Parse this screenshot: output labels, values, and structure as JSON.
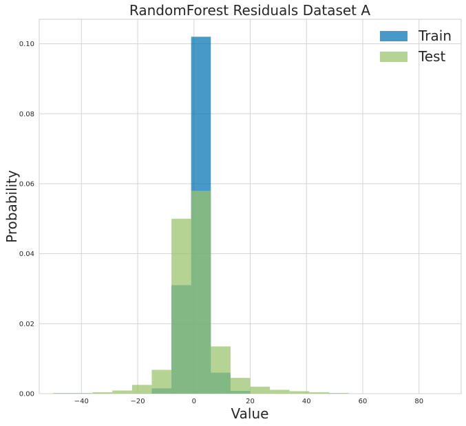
{
  "chart_data": {
    "type": "bar",
    "title": "RandomForest Residuals Dataset A",
    "xlabel": "Value",
    "ylabel": "Probability",
    "xlim": [
      -55,
      95
    ],
    "ylim": [
      0,
      0.107
    ],
    "x_ticks": [
      -40,
      -20,
      0,
      20,
      40,
      60,
      80
    ],
    "x_tick_labels": [
      "−40",
      "−20",
      "0",
      "20",
      "40",
      "60",
      "80"
    ],
    "y_ticks": [
      0.0,
      0.02,
      0.04,
      0.06,
      0.08,
      0.1
    ],
    "y_tick_labels": [
      "0.00",
      "0.02",
      "0.04",
      "0.06",
      "0.08",
      "0.10"
    ],
    "grid": true,
    "legend_position": "top-right",
    "series": [
      {
        "name": "Train",
        "color": "#0072b2",
        "bins": [
          [
            -15,
            -8,
            0.0015
          ],
          [
            -8,
            -1,
            0.031
          ],
          [
            -1,
            6,
            0.102
          ],
          [
            6,
            13,
            0.006
          ],
          [
            13,
            20,
            0.0008
          ]
        ]
      },
      {
        "name": "Test",
        "color": "#98c46b",
        "bins": [
          [
            -50,
            -43,
            0.0002
          ],
          [
            -43,
            -36,
            0.0002
          ],
          [
            -36,
            -29,
            0.0004
          ],
          [
            -29,
            -22,
            0.0009
          ],
          [
            -22,
            -15,
            0.0025
          ],
          [
            -15,
            -8,
            0.0068
          ],
          [
            -8,
            -1,
            0.05
          ],
          [
            -1,
            6,
            0.058
          ],
          [
            6,
            13,
            0.0135
          ],
          [
            13,
            20,
            0.0045
          ],
          [
            20,
            27,
            0.002
          ],
          [
            27,
            34,
            0.0011
          ],
          [
            34,
            41,
            0.0007
          ],
          [
            41,
            48,
            0.0004
          ],
          [
            48,
            55,
            0.0002
          ]
        ]
      }
    ]
  }
}
